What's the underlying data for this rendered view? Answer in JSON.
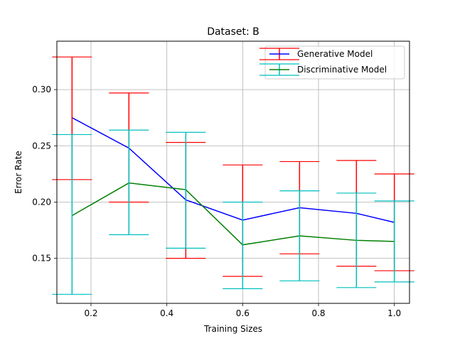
{
  "chart_data": {
    "type": "line",
    "title": "Dataset: B",
    "xlabel": "Training Sizes",
    "ylabel": "Error Rate",
    "xlim": [
      0.11,
      1.04
    ],
    "ylim": [
      0.11,
      0.343
    ],
    "xticks": [
      0.2,
      0.4,
      0.6,
      0.8,
      1.0
    ],
    "xtick_labels": [
      "0.2",
      "0.4",
      "0.6",
      "0.8",
      "1.0"
    ],
    "yticks": [
      0.15,
      0.2,
      0.25,
      0.3
    ],
    "ytick_labels": [
      "0.15",
      "0.20",
      "0.25",
      "0.30"
    ],
    "grid": true,
    "legend_position": "top-right",
    "x": [
      0.15,
      0.3,
      0.45,
      0.6,
      0.75,
      0.9,
      1.0
    ],
    "series": [
      {
        "name": "Generative Model",
        "color": "#0000ff",
        "error_color": "#ff0000",
        "values": [
          0.275,
          0.248,
          0.202,
          0.184,
          0.195,
          0.19,
          0.182
        ],
        "lower": [
          0.22,
          0.2,
          0.15,
          0.134,
          0.154,
          0.143,
          0.139
        ],
        "upper": [
          0.329,
          0.297,
          0.253,
          0.233,
          0.236,
          0.237,
          0.225
        ]
      },
      {
        "name": "Discriminative Model",
        "color": "#008000",
        "error_color": "#00bfbf",
        "values": [
          0.188,
          0.217,
          0.211,
          0.162,
          0.17,
          0.166,
          0.165
        ],
        "lower": [
          0.118,
          0.171,
          0.159,
          0.123,
          0.13,
          0.124,
          0.129
        ],
        "upper": [
          0.26,
          0.264,
          0.262,
          0.2,
          0.21,
          0.208,
          0.201
        ]
      }
    ]
  }
}
